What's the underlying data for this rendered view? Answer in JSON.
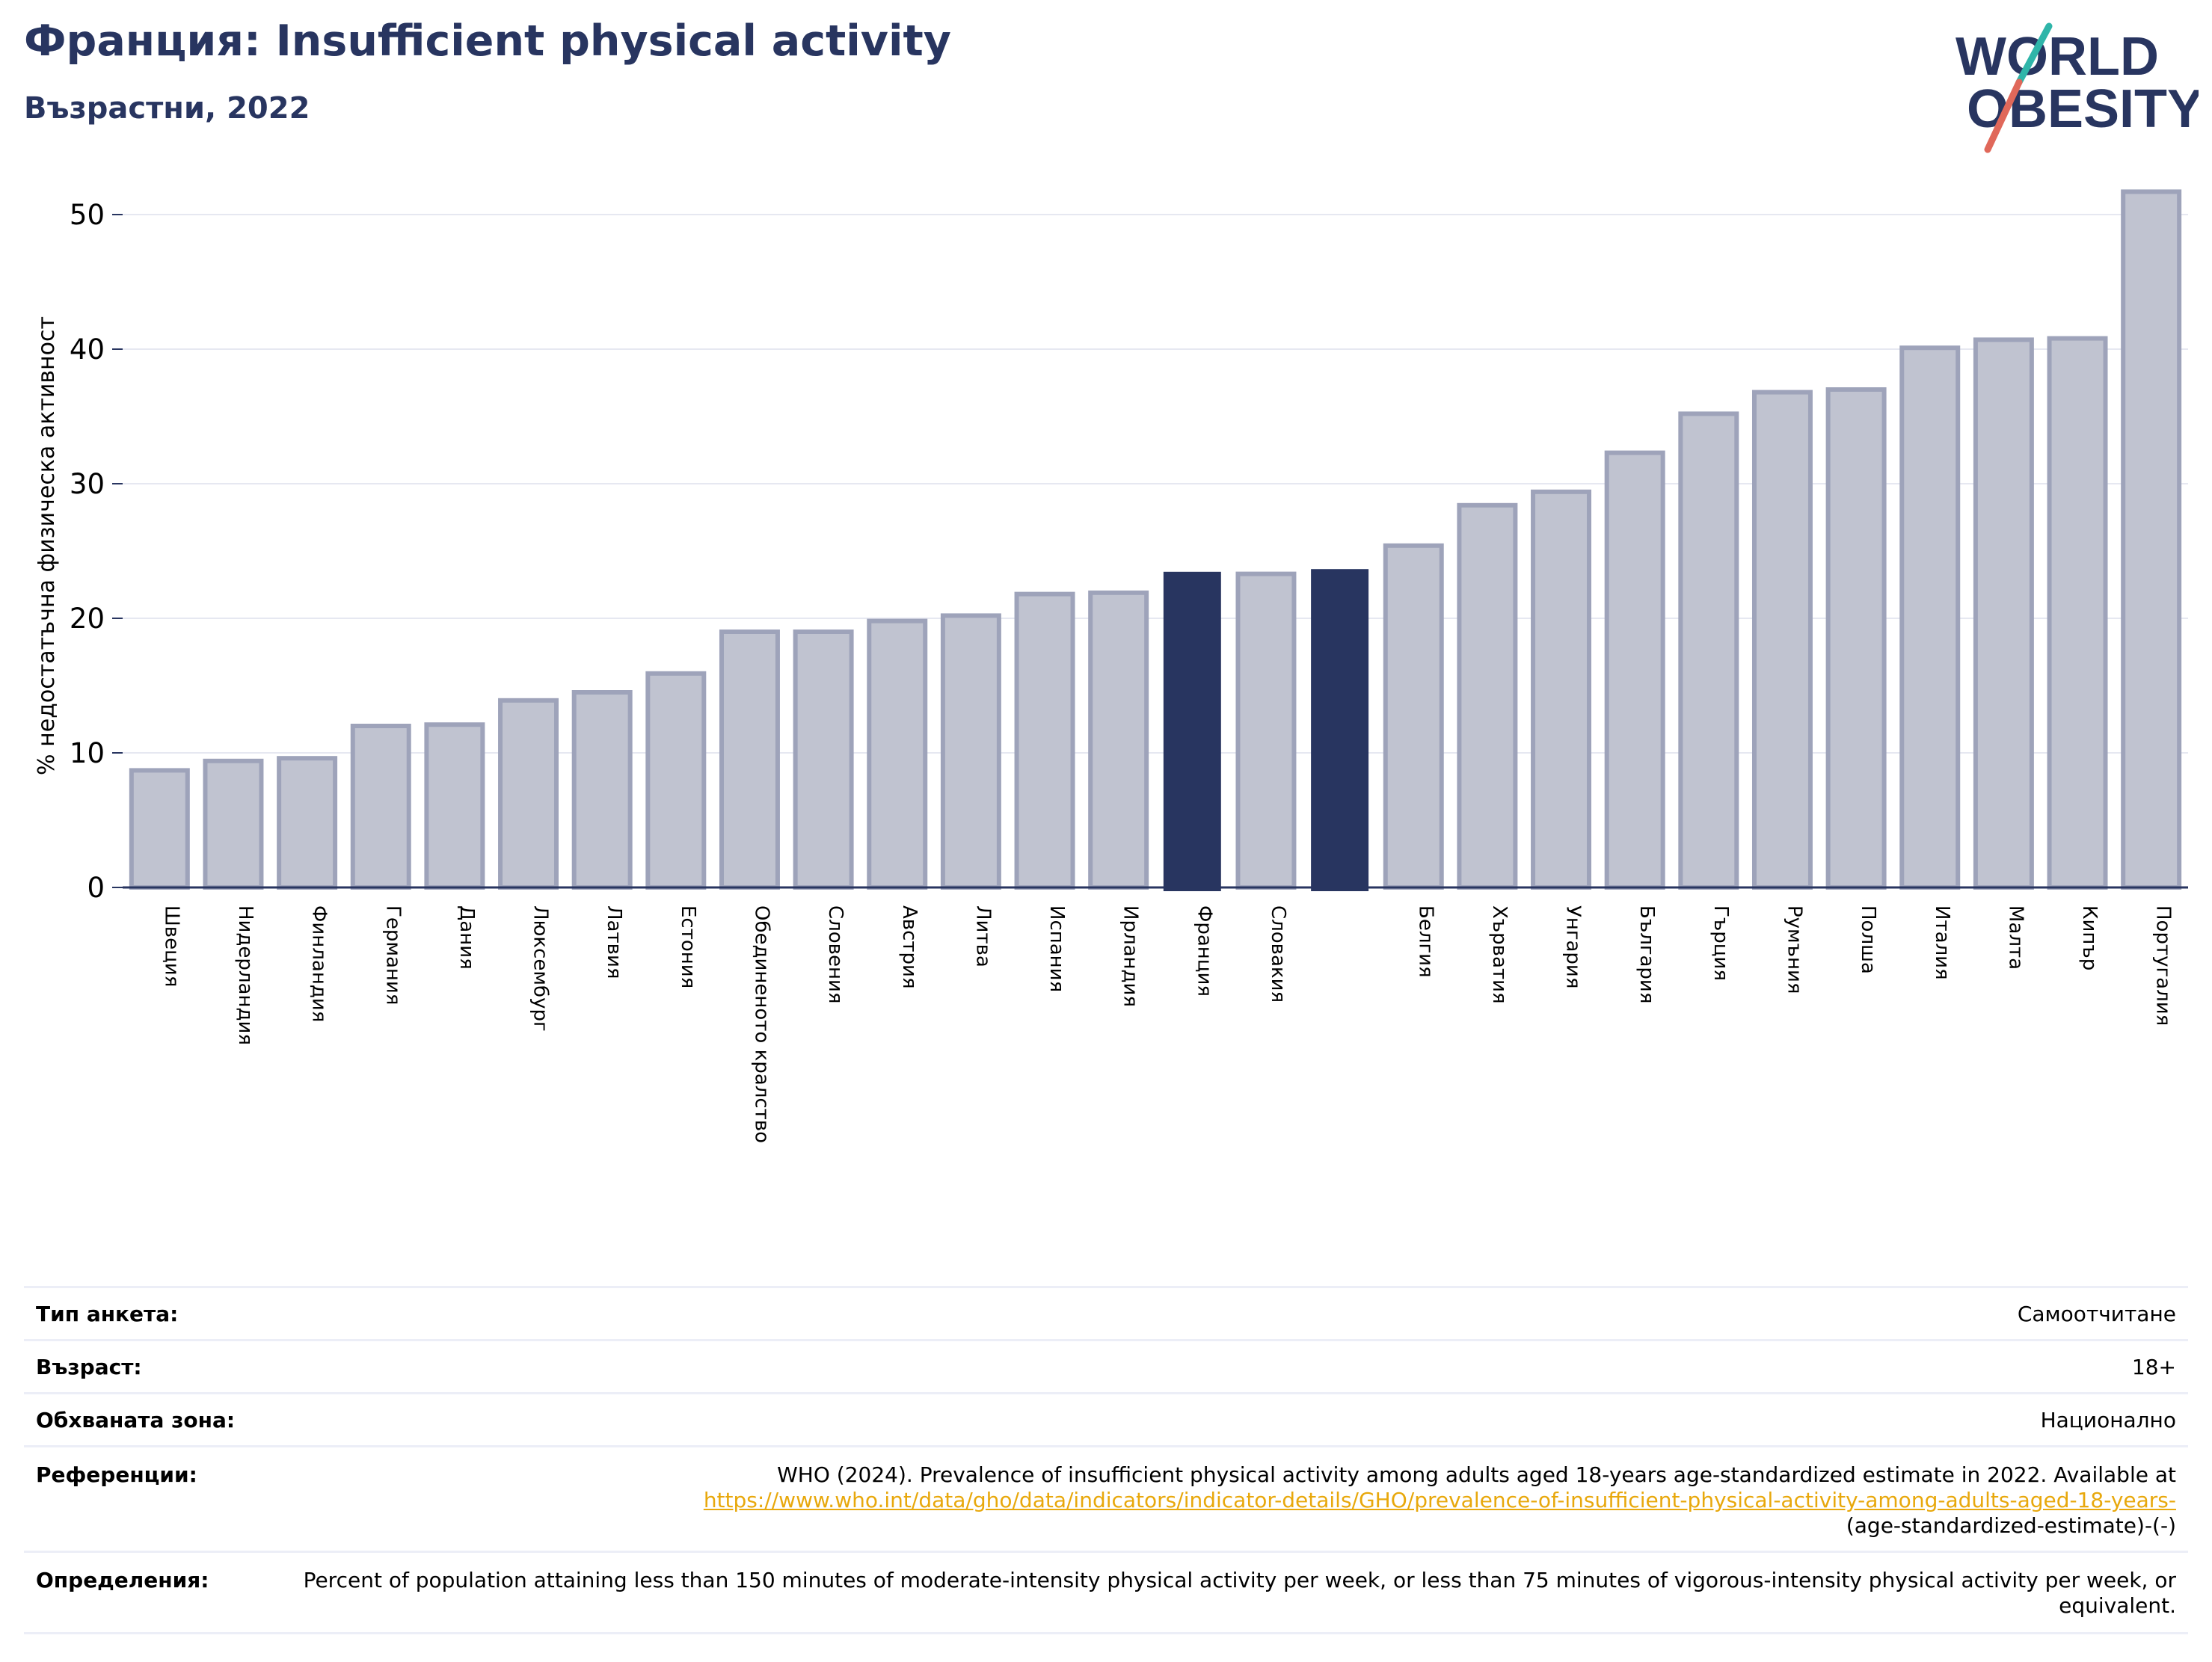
{
  "header": {
    "title": "Франция: Insufficient physical activity",
    "subtitle": "Възрастни, 2022"
  },
  "logo": {
    "line1": "WORLD",
    "line2": "OBESITY",
    "colors": {
      "text": "#283560",
      "slash_top": "#2fb5a9",
      "slash_bottom": "#e0685a"
    }
  },
  "chart_data": {
    "type": "bar",
    "title": "",
    "xlabel": "",
    "ylabel": "% недостатъчна физическа активност",
    "ylim": [
      0,
      53.5
    ],
    "yticks": [
      0,
      10,
      20,
      30,
      40,
      50
    ],
    "grid": true,
    "categories": [
      "Швеция",
      "Нидерландия",
      "Финландия",
      "Германия",
      "Дания",
      "Люксембург",
      "Латвия",
      "Естония",
      "Обединеното кралство",
      "Словения",
      "Австрия",
      "Литва",
      "Испания",
      "Ирландия",
      "Франция",
      "Словакия",
      "",
      "Белгия",
      "Хърватия",
      "Унгария",
      "България",
      "Гърция",
      "Румъния",
      "Полша",
      "Италия",
      "Малта",
      "Кипър",
      "Португалия"
    ],
    "values": [
      8.7,
      9.4,
      9.6,
      12.0,
      12.1,
      13.9,
      14.5,
      15.9,
      19.0,
      19.0,
      19.8,
      20.2,
      21.8,
      21.9,
      23.4,
      23.3,
      23.6,
      25.4,
      28.4,
      29.4,
      32.3,
      35.2,
      36.8,
      37.0,
      40.1,
      40.7,
      40.8,
      51.7
    ],
    "highlighted_indices": [
      14,
      16
    ],
    "colors": {
      "bar_fill": "#c0c3d0",
      "bar_edge": "#9ea3ba",
      "highlight": "#283560",
      "grid": "#e6e8f1",
      "axis": "#283560"
    }
  },
  "info": {
    "rows": [
      {
        "label": "Тип анкета:",
        "value": "Самоотчитане"
      },
      {
        "label": "Възраст:",
        "value": "18+"
      },
      {
        "label": "Обхваната зона:",
        "value": "Национално"
      },
      {
        "label": "Референции:",
        "value_line1": "WHO (2024). Prevalence of insufficient physical activity among adults aged 18-years age-standardized estimate in 2022. Available at",
        "link": "https://www.who.int/data/gho/data/indicators/indicator-details/GHO/prevalence-of-insufficient-physical-activity-among-adults-aged-18-years-",
        "value_line3": "(age-standardized-estimate)-(-)"
      },
      {
        "label": "Определения:",
        "value": "Percent of population attaining less than 150 minutes of moderate-intensity physical activity per week, or less than 75 minutes of vigorous-intensity physical activity per week, or equivalent."
      }
    ]
  }
}
